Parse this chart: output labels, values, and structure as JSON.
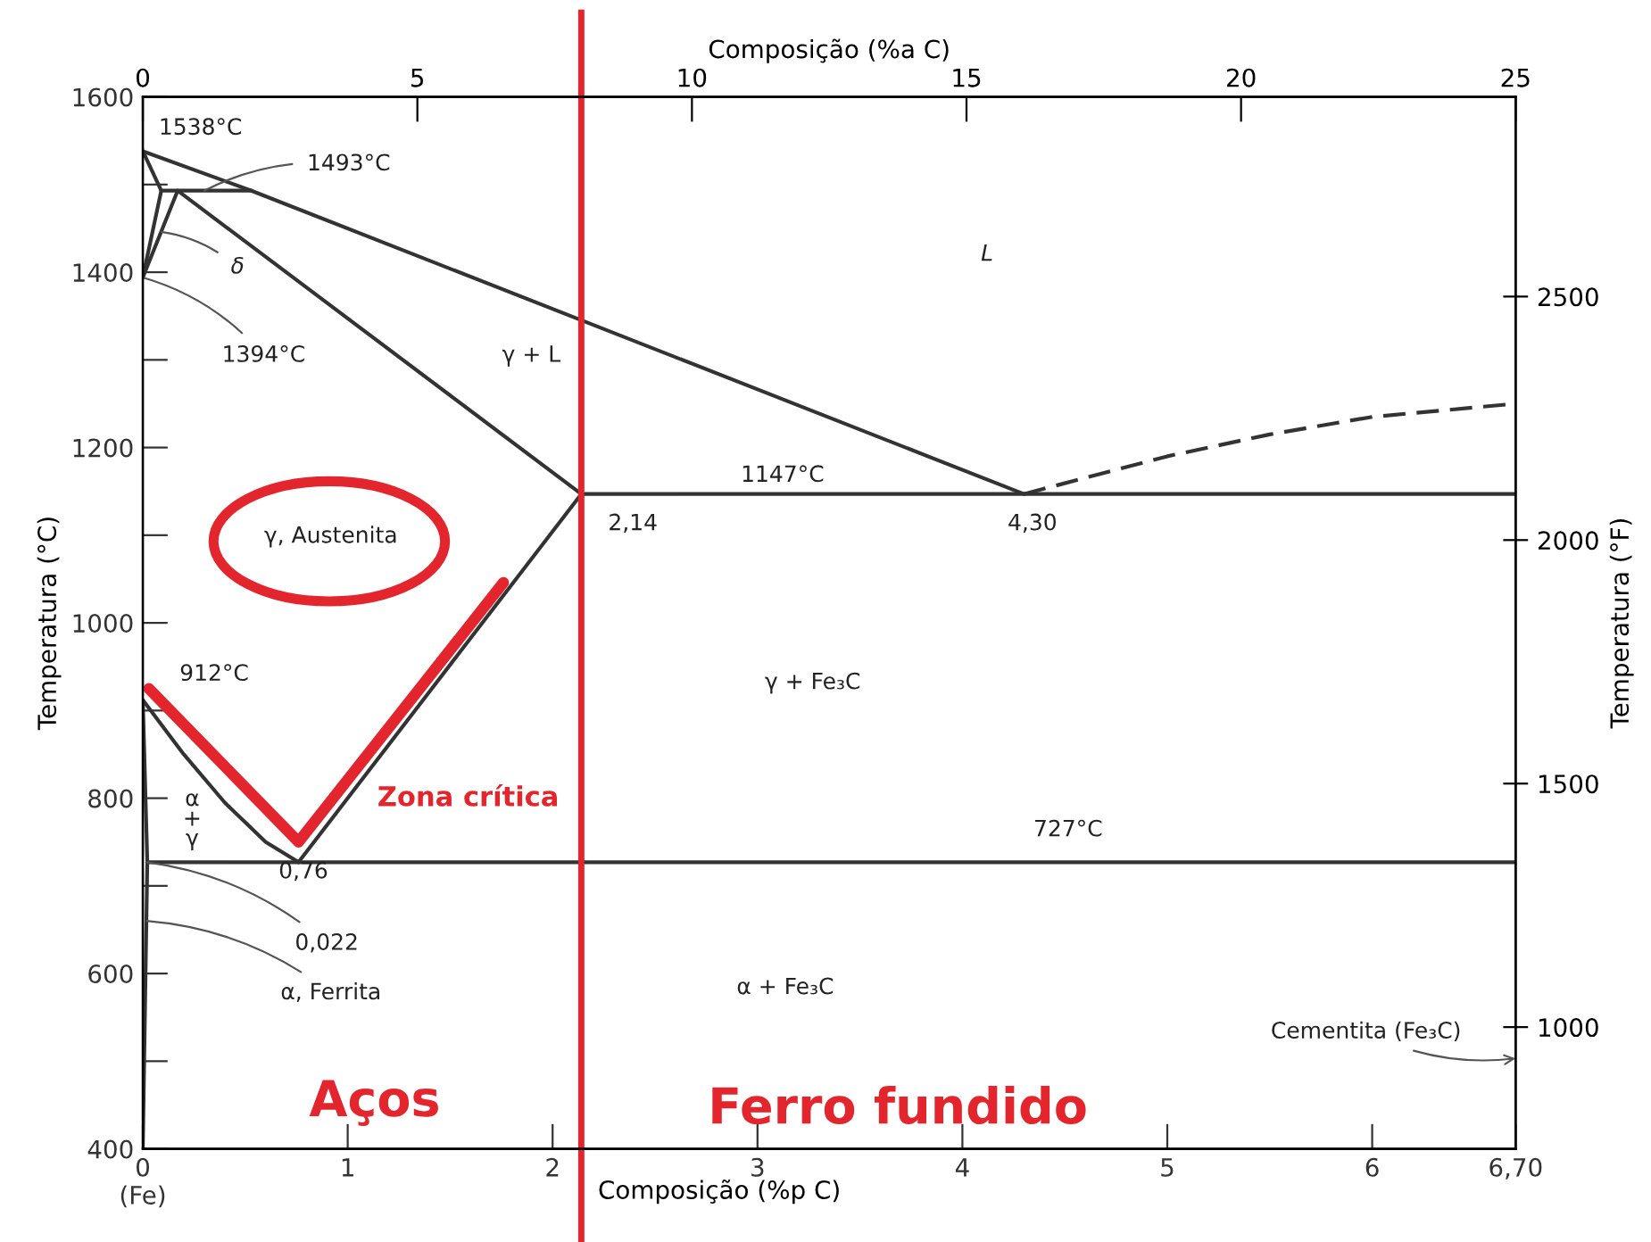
{
  "chart_data": {
    "type": "line",
    "xlabel": "Composição (%p C)",
    "x2label": "Composição (%a C)",
    "ylabel": "Temperatura (°C)",
    "y2label": "Temperatura (°F)",
    "xlim": [
      0,
      6.7
    ],
    "xticks": [
      {
        "value": 0,
        "label": "0\n(Fe)"
      },
      1,
      2,
      3,
      4,
      5,
      6,
      {
        "value": 6.7,
        "label": "6,70"
      }
    ],
    "x2lim": [
      0,
      25
    ],
    "x2ticks": [
      0,
      5,
      10,
      15,
      20,
      25
    ],
    "ylim": [
      400,
      1600
    ],
    "yticks": [
      400,
      {
        "value": 500,
        "label": null
      },
      600,
      {
        "value": 700,
        "label": null
      },
      800,
      {
        "value": 900,
        "label": null
      },
      1000,
      {
        "value": 1100,
        "label": null
      },
      1200,
      {
        "value": 1300,
        "label": null
      },
      1400,
      {
        "value": 1500,
        "label": null
      },
      1600
    ],
    "y2lim": [
      750,
      2910
    ],
    "y2ticks": [
      1000,
      1500,
      2000,
      2500
    ],
    "grid": false,
    "legend": false,
    "marker": "none",
    "series": [
      {
        "color": "#333333",
        "x": [
          0,
          0.53,
          4.3
        ],
        "values": [
          1538,
          1493,
          1147
        ]
      },
      {
        "color": "#333333",
        "line_style": "dashed",
        "x": [
          4.3,
          5.0,
          5.5,
          6.0,
          6.7
        ],
        "values": [
          1147,
          1190,
          1215,
          1235,
          1250
        ]
      },
      {
        "color": "#333333",
        "x": [
          0,
          0.09,
          0.53
        ],
        "values": [
          1538,
          1493,
          1493
        ]
      },
      {
        "color": "#333333",
        "x": [
          0,
          0.09
        ],
        "values": [
          1394,
          1493
        ]
      },
      {
        "color": "#333333",
        "x": [
          0,
          0.17,
          2.14
        ],
        "values": [
          1394,
          1493,
          1147
        ]
      },
      {
        "color": "#333333",
        "x": [
          2.14,
          6.7
        ],
        "values": [
          1147,
          1147
        ]
      },
      {
        "color": "#333333",
        "x": [
          2.14,
          0.76
        ],
        "values": [
          1147,
          727
        ]
      },
      {
        "color": "#333333",
        "x": [
          0,
          0.2,
          0.4,
          0.6,
          0.76
        ],
        "values": [
          912,
          850,
          795,
          750,
          727
        ]
      },
      {
        "color": "#333333",
        "x": [
          0.022,
          6.7
        ],
        "values": [
          727,
          727
        ]
      },
      {
        "color": "#333333",
        "x": [
          0,
          0.022,
          0
        ],
        "values": [
          912,
          727,
          400
        ]
      },
      {
        "color": "#e3262e",
        "x": [
          0.03,
          0.76,
          1.76
        ],
        "values": [
          925,
          750,
          1046
        ]
      }
    ],
    "ref_lines": [
      {
        "axis": "x",
        "value": 2.14,
        "color": "#e3262e"
      }
    ],
    "annotations": [
      {
        "text": "1538°C",
        "x": 0,
        "y": 1538
      },
      {
        "text": "1493°C",
        "x": 0.3,
        "y": 1493
      },
      {
        "text": "δ",
        "x": 0.09,
        "y": 1446
      },
      {
        "text": "1394°C",
        "x": 0,
        "y": 1394
      },
      "γ + L",
      "L",
      "1147°C",
      {
        "text": "2,14",
        "x": 2.14,
        "y": 1147
      },
      {
        "text": "4,30",
        "x": 4.3,
        "y": 1147
      },
      "γ, Austenita",
      {
        "text": "912°C",
        "x": 0,
        "y": 912
      },
      "α\n+\nγ",
      {
        "text": "0,76",
        "x": 0.76,
        "y": 727
      },
      {
        "text": "0,022",
        "x": 0.022,
        "y": 727
      },
      {
        "text": "α, Ferrita",
        "x": 0.018,
        "y": 660
      },
      "Zona crítica",
      "γ + Fe₃C",
      "727°C",
      "α + Fe₃C",
      "Cementita (Fe₃C)",
      "Aços",
      "Ferro fundido"
    ]
  }
}
